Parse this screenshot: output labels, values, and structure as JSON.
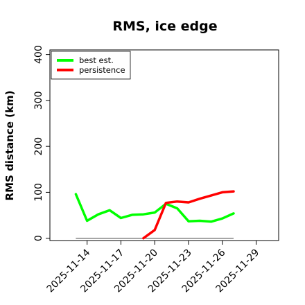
{
  "chart_data": {
    "type": "line",
    "title": "RMS, ice edge",
    "xlabel": "",
    "ylabel": "RMS distance (km)",
    "ylim": [
      -5,
      410
    ],
    "xlim": [
      -3.3,
      17.0
    ],
    "x_tick_labels": [
      "2025-11-14",
      "2025-11-17",
      "2025-11-20",
      "2025-11-23",
      "2025-11-26",
      "2025-11-29"
    ],
    "x_tick_days": [
      0,
      3,
      6,
      9,
      12,
      15
    ],
    "y_ticks": [
      0,
      100,
      200,
      300,
      400
    ],
    "grid": false,
    "legend": {
      "position": "top-left",
      "entries": [
        "best est.",
        "persistence"
      ]
    },
    "reference_line": {
      "y": 0,
      "x_start_day": -1,
      "x_end_day": 13
    },
    "series": [
      {
        "name": "best est.",
        "color": "#00ff00",
        "x_day": [
          -1,
          0,
          1,
          2,
          3,
          4,
          5,
          6,
          7,
          8,
          9,
          10,
          11,
          12,
          13
        ],
        "y": [
          96,
          38,
          52,
          61,
          44,
          51,
          52,
          56,
          75,
          65,
          37,
          38,
          36,
          43,
          54
        ]
      },
      {
        "name": "persistence",
        "color": "#ff0000",
        "x_day": [
          5,
          6,
          7,
          8,
          9,
          10,
          11,
          12,
          13
        ],
        "y": [
          0,
          18,
          77,
          80,
          78,
          86,
          93,
          100,
          102
        ]
      }
    ]
  }
}
